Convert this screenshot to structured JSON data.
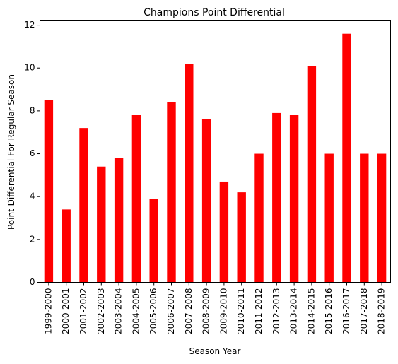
{
  "chart_data": {
    "type": "bar",
    "title": "Champions Point Differential",
    "xlabel": "Season Year",
    "ylabel": "Point Differential For Regular Season",
    "categories": [
      "1999-2000",
      "2000-2001",
      "2001-2002",
      "2002-2003",
      "2003-2004",
      "2004-2005",
      "2005-2006",
      "2006-2007",
      "2007-2008",
      "2008-2009",
      "2009-2010",
      "2010-2011",
      "2011-2012",
      "2012-2013",
      "2013-2014",
      "2014-2015",
      "2015-2016",
      "2016-2017",
      "2017-2018",
      "2018-2019"
    ],
    "values": [
      8.5,
      3.4,
      7.2,
      5.4,
      5.8,
      7.8,
      3.9,
      8.4,
      10.2,
      7.6,
      4.7,
      4.2,
      6.0,
      7.9,
      7.8,
      10.1,
      6.0,
      11.6,
      6.0,
      6.0
    ],
    "ylim": [
      0,
      12.2
    ],
    "yticks": [
      0,
      2,
      4,
      6,
      8,
      10,
      12
    ],
    "ytick_labels": [
      "0",
      "2",
      "4",
      "6",
      "8",
      "10",
      "12"
    ],
    "grid": false,
    "legend": "none",
    "bar_color": "#ff0000"
  }
}
